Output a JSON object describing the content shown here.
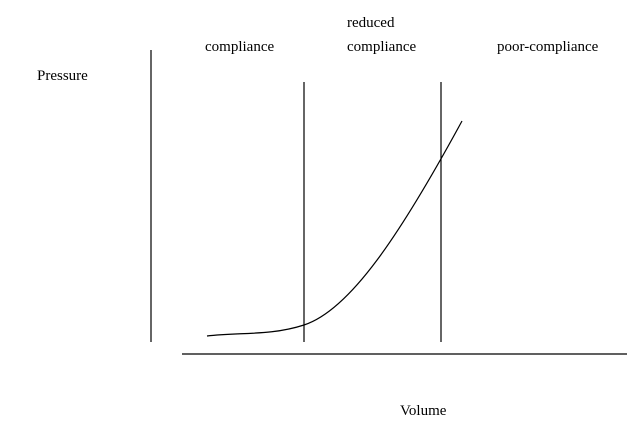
{
  "axes": {
    "y_label": "Pressure",
    "x_label": "Volume"
  },
  "regions": [
    {
      "lines": [
        "compliance"
      ]
    },
    {
      "lines": [
        "reduced",
        "compliance"
      ]
    },
    {
      "lines": [
        "poor-compliance"
      ]
    }
  ]
}
